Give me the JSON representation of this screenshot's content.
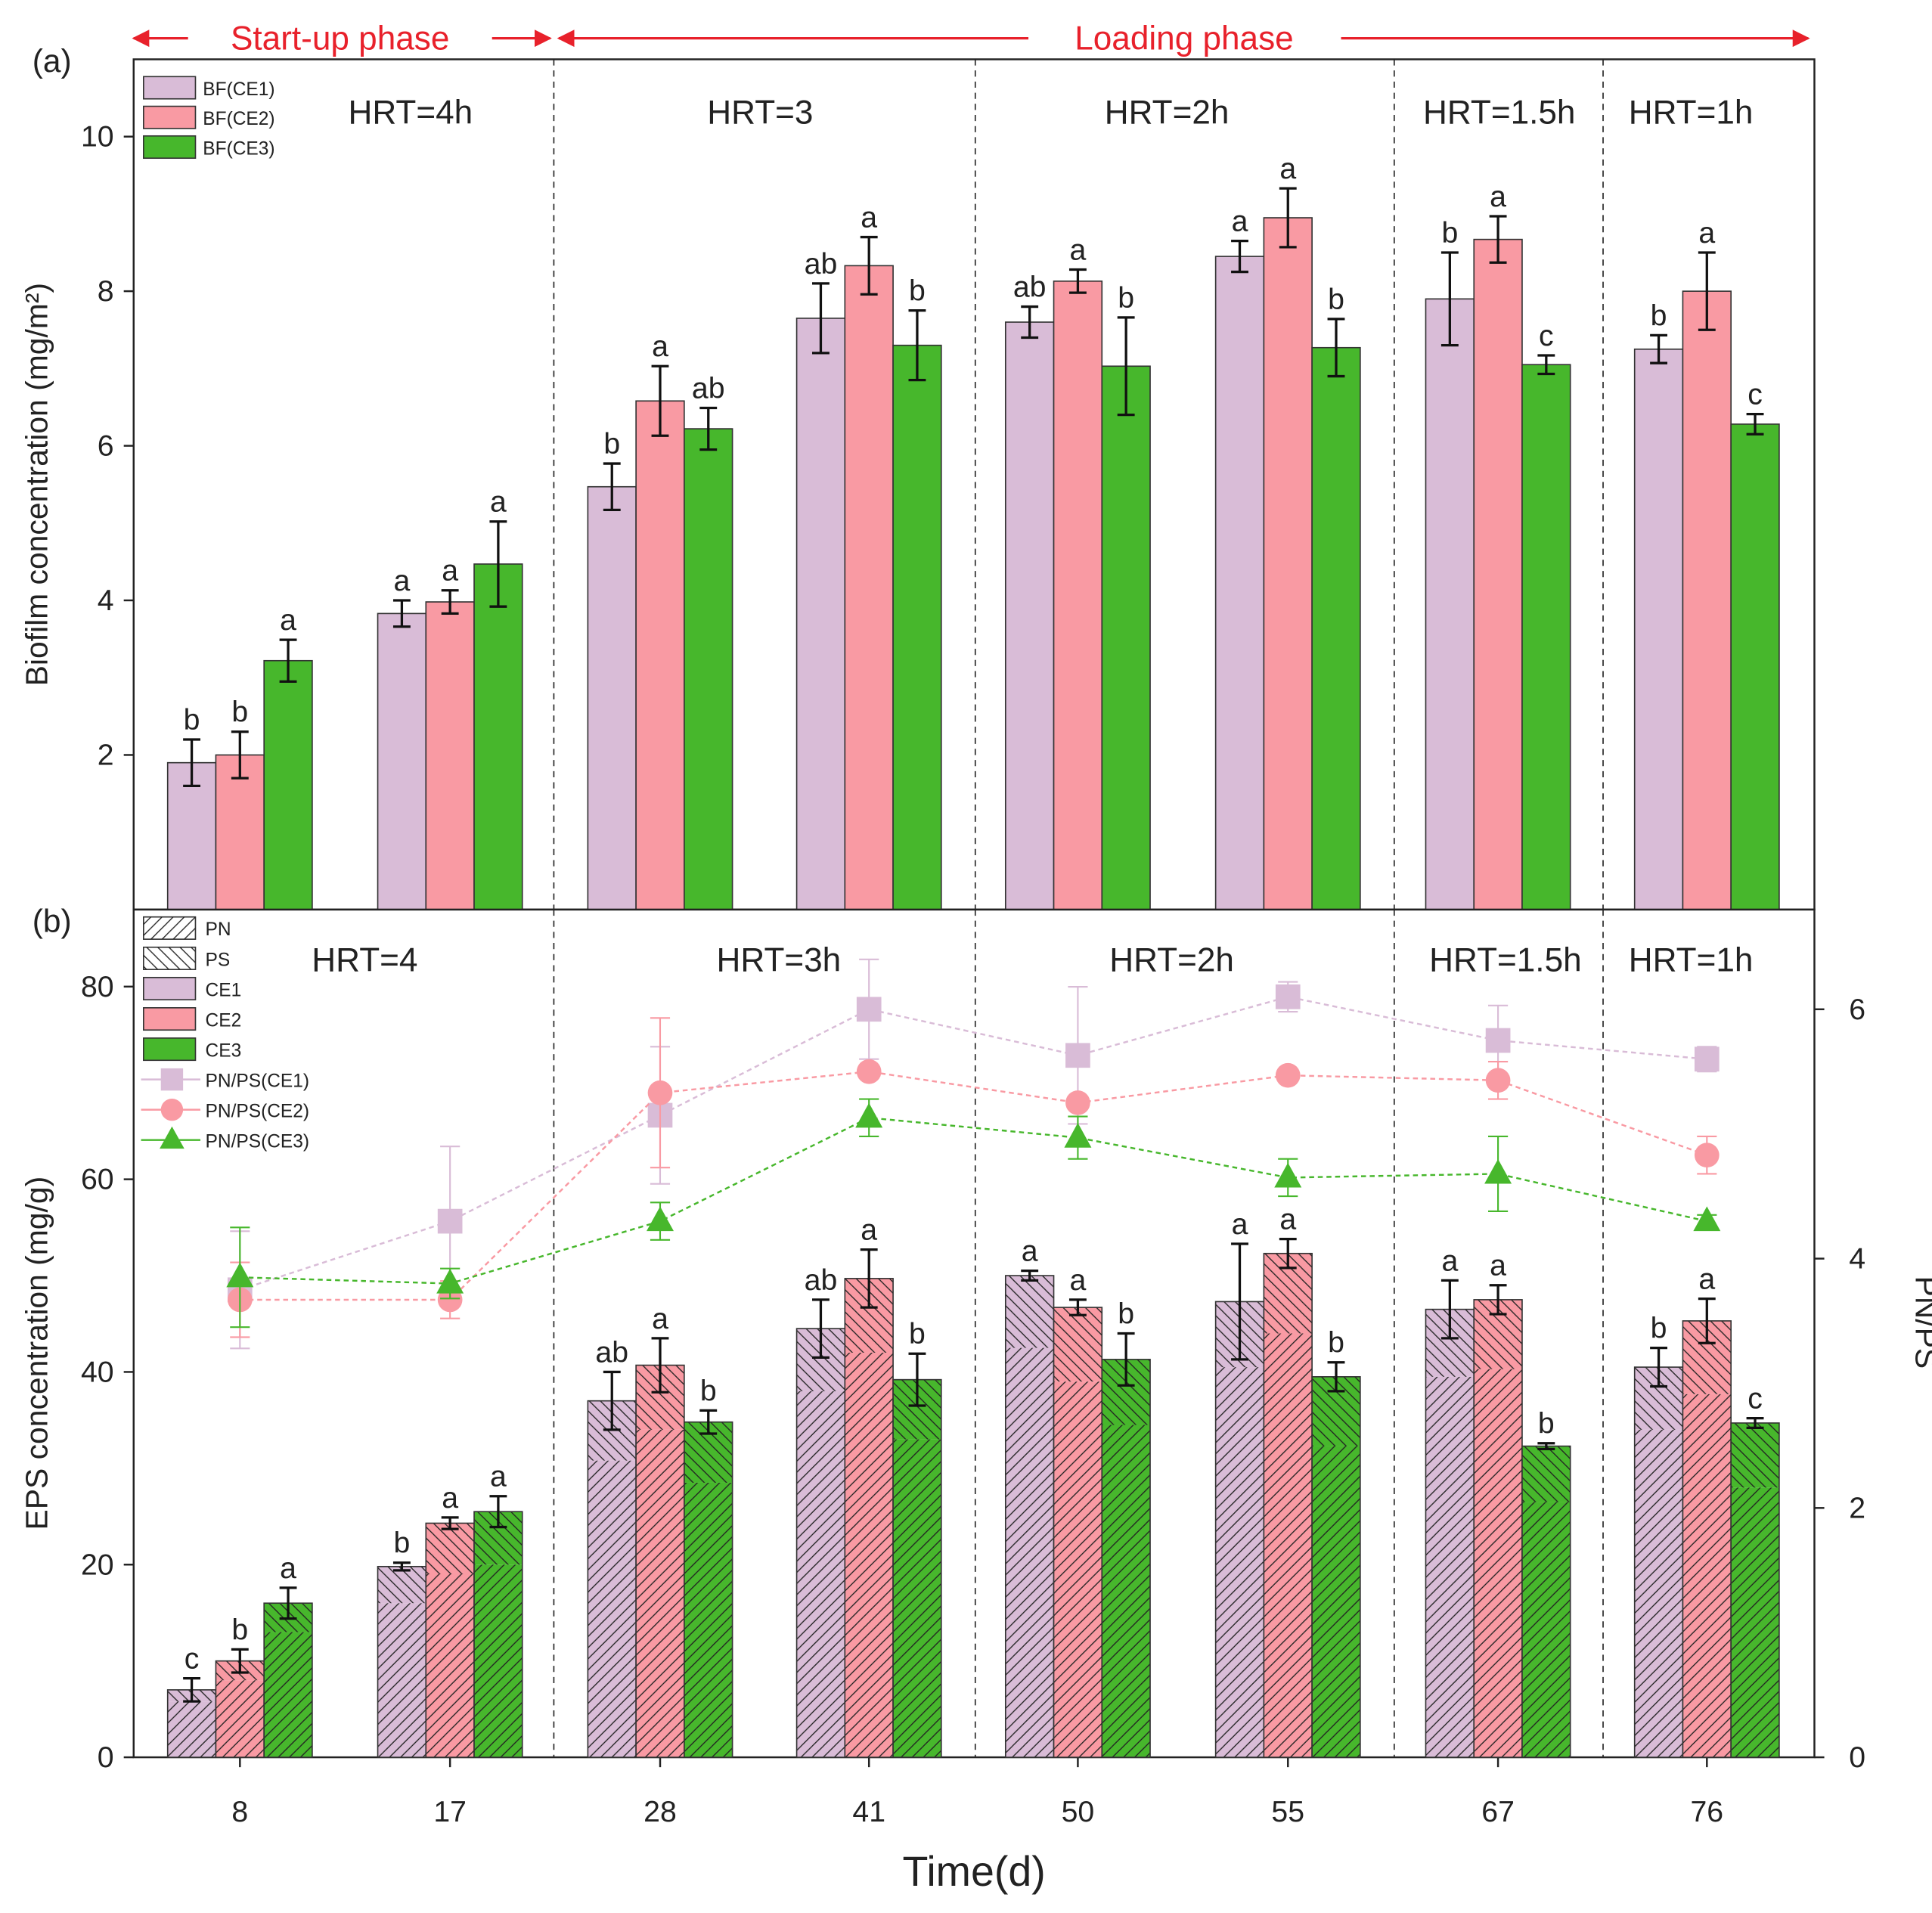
{
  "phase_bar": {
    "startup_label": "Start-up phase",
    "loading_label": "Loading phase",
    "arrow_color": "#e8212b"
  },
  "colors": {
    "CE1": "#d9bcd7",
    "CE2": "#f99aa3",
    "CE3": "#47b72c",
    "grid_line": "#222222"
  },
  "chart_data": [
    {
      "panel_label": "(a)",
      "type": "bar",
      "categories": [
        "8",
        "17",
        "28",
        "41",
        "50",
        "55",
        "67",
        "76"
      ],
      "ylabel": "Biofilm concentration (mg/m²)",
      "ylim": [
        0,
        11
      ],
      "yticks": [
        "2",
        "4",
        "6",
        "8",
        "10"
      ],
      "legend": [
        "BF(CE1)",
        "BF(CE2)",
        "BF(CE3)"
      ],
      "hrt_labels": [
        "HRT=4h",
        "HRT=3",
        "HRT=2h",
        "HRT=1.5h",
        "HRT=1h"
      ],
      "series": [
        {
          "name": "BF(CE1)",
          "values": [
            1.9,
            3.83,
            5.47,
            7.65,
            7.6,
            8.45,
            7.9,
            7.25
          ],
          "errors": [
            0.3,
            0.17,
            0.3,
            0.45,
            0.2,
            0.2,
            0.6,
            0.18
          ],
          "letters": [
            "b",
            "a",
            "b",
            "ab",
            "ab",
            "a",
            "b",
            "b"
          ]
        },
        {
          "name": "BF(CE2)",
          "values": [
            2.0,
            3.98,
            6.58,
            8.33,
            8.13,
            8.95,
            8.67,
            8.0
          ],
          "errors": [
            0.3,
            0.15,
            0.45,
            0.37,
            0.15,
            0.38,
            0.3,
            0.5
          ],
          "letters": [
            "b",
            "a",
            "a",
            "a",
            "a",
            "a",
            "a",
            "a"
          ]
        },
        {
          "name": "BF(CE3)",
          "values": [
            3.22,
            4.47,
            6.22,
            7.3,
            7.03,
            7.27,
            7.05,
            6.28
          ],
          "errors": [
            0.27,
            0.55,
            0.27,
            0.45,
            0.63,
            0.37,
            0.12,
            0.13
          ],
          "letters": [
            "a",
            "a",
            "ab",
            "b",
            "b",
            "b",
            "c",
            "c"
          ]
        }
      ]
    },
    {
      "panel_label": "(b)",
      "type": "bar",
      "categories": [
        "8",
        "17",
        "28",
        "41",
        "50",
        "55",
        "67",
        "76"
      ],
      "xlabel": "Time(d)",
      "ylabel": "EPS concentration (mg/g)",
      "y2label": "PN/PS",
      "ylim": [
        0,
        88
      ],
      "yticks": [
        "0",
        "20",
        "40",
        "60",
        "80"
      ],
      "y2lim": [
        0,
        6.8
      ],
      "y2ticks": [
        "0",
        "2",
        "4",
        "6"
      ],
      "legend": [
        "PN",
        "PS",
        "CE1",
        "CE2",
        "CE3",
        "PN/PS(CE1)",
        "PN/PS(CE2)",
        "PN/PS(CE3)"
      ],
      "hrt_labels": [
        "HRT=4",
        "HRT=3h",
        "HRT=2h",
        "HRT=1.5h",
        "HRT=1h"
      ],
      "series": [
        {
          "name": "CE1",
          "values": [
            7.0,
            19.8,
            37.0,
            44.5,
            50.0,
            47.3,
            46.5,
            40.5
          ],
          "pn": [
            5.8,
            16.0,
            30.8,
            38.0,
            42.5,
            40.5,
            39.5,
            34.0
          ],
          "errors": [
            1.2,
            0.4,
            3.0,
            3.0,
            0.5,
            6.0,
            3.0,
            2.0
          ],
          "letters": [
            "c",
            "b",
            "ab",
            "ab",
            "a",
            "a",
            "a",
            "b"
          ]
        },
        {
          "name": "CE2",
          "values": [
            10.0,
            24.3,
            40.7,
            49.7,
            46.7,
            52.3,
            47.5,
            45.3
          ],
          "pn": [
            8.0,
            19.0,
            34.0,
            42.0,
            39.0,
            44.0,
            40.3,
            37.7
          ],
          "errors": [
            1.2,
            0.6,
            2.8,
            3.0,
            0.8,
            1.5,
            1.5,
            2.3
          ],
          "letters": [
            "b",
            "a",
            "a",
            "a",
            "a",
            "a",
            "a",
            "a"
          ]
        },
        {
          "name": "CE3",
          "values": [
            16.0,
            25.5,
            34.8,
            39.2,
            41.3,
            39.5,
            32.3,
            34.7
          ],
          "pn": [
            13.0,
            20.0,
            28.5,
            33.0,
            34.5,
            32.3,
            26.5,
            28.0
          ],
          "errors": [
            1.6,
            1.6,
            1.2,
            2.7,
            2.7,
            1.5,
            0.3,
            0.5
          ],
          "letters": [
            "a",
            "a",
            "b",
            "b",
            "b",
            "b",
            "b",
            "c"
          ]
        }
      ],
      "line_series": [
        {
          "name": "PN/PS(CE1)",
          "values": [
            3.75,
            4.3,
            5.15,
            6.0,
            5.63,
            6.1,
            5.75,
            5.6
          ],
          "errors": [
            0.47,
            0.6,
            0.55,
            0.4,
            0.55,
            0.12,
            0.28,
            0.1
          ]
        },
        {
          "name": "PN/PS(CE2)",
          "values": [
            3.67,
            3.67,
            5.33,
            5.5,
            5.25,
            5.47,
            5.43,
            4.83
          ],
          "errors": [
            0.3,
            0.15,
            0.6,
            0.05,
            0.03,
            0.05,
            0.15,
            0.15
          ]
        },
        {
          "name": "PN/PS(CE3)",
          "values": [
            3.85,
            3.8,
            4.3,
            5.13,
            4.97,
            4.65,
            4.68,
            4.3
          ],
          "errors": [
            0.4,
            0.12,
            0.15,
            0.15,
            0.17,
            0.15,
            0.3,
            0.05
          ]
        }
      ]
    }
  ]
}
